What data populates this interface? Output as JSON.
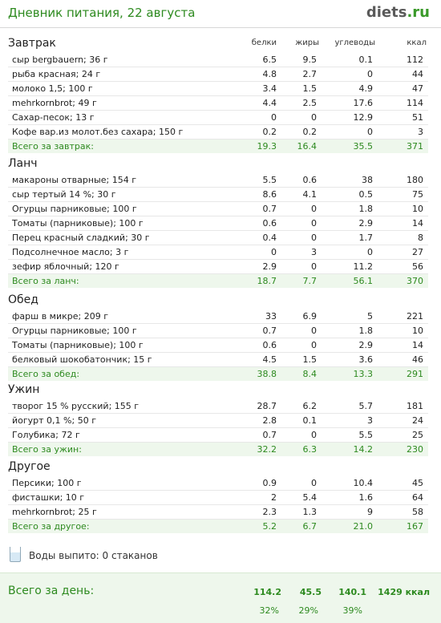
{
  "header": {
    "title": "Дневник питания, 22 августа",
    "logo_main": "diets",
    "logo_ext": ".ru"
  },
  "columns": {
    "protein": "белки",
    "fat": "жиры",
    "carbs": "углеводы",
    "kcal": "ккал"
  },
  "sections": [
    {
      "title": "Завтрак",
      "items": [
        [
          "сыр bergbauern; 36 г",
          "6.5",
          "9.5",
          "0.1",
          "112"
        ],
        [
          "рыба красная; 24 г",
          "4.8",
          "2.7",
          "0",
          "44"
        ],
        [
          "молоко 1,5; 100 г",
          "3.4",
          "1.5",
          "4.9",
          "47"
        ],
        [
          "mehrkornbrot; 49 г",
          "4.4",
          "2.5",
          "17.6",
          "114"
        ],
        [
          "Сахар-песок; 13 г",
          "0",
          "0",
          "12.9",
          "51"
        ],
        [
          "Кофе вар.из молот.без сахара; 150 г",
          "0.2",
          "0.2",
          "0",
          "3"
        ]
      ],
      "total": [
        "Всего за завтрак:",
        "19.3",
        "16.4",
        "35.5",
        "371"
      ]
    },
    {
      "title": "Ланч",
      "items": [
        [
          "макароны отварные; 154 г",
          "5.5",
          "0.6",
          "38",
          "180"
        ],
        [
          "сыр тертый 14 %; 30 г",
          "8.6",
          "4.1",
          "0.5",
          "75"
        ],
        [
          "Огурцы парниковые; 100 г",
          "0.7",
          "0",
          "1.8",
          "10"
        ],
        [
          "Томаты (парниковые); 100 г",
          "0.6",
          "0",
          "2.9",
          "14"
        ],
        [
          "Перец красный сладкий; 30 г",
          "0.4",
          "0",
          "1.7",
          "8"
        ],
        [
          "Подсолнечное масло; 3 г",
          "0",
          "3",
          "0",
          "27"
        ],
        [
          "зефир яблочный; 120 г",
          "2.9",
          "0",
          "11.2",
          "56"
        ]
      ],
      "total": [
        "Всего за ланч:",
        "18.7",
        "7.7",
        "56.1",
        "370"
      ]
    },
    {
      "title": "Обед",
      "items": [
        [
          "фарш в микре; 209 г",
          "33",
          "6.9",
          "5",
          "221"
        ],
        [
          "Огурцы парниковые; 100 г",
          "0.7",
          "0",
          "1.8",
          "10"
        ],
        [
          "Томаты (парниковые); 100 г",
          "0.6",
          "0",
          "2.9",
          "14"
        ],
        [
          "белковый шокобатончик; 15 г",
          "4.5",
          "1.5",
          "3.6",
          "46"
        ]
      ],
      "total": [
        "Всего за обед:",
        "38.8",
        "8.4",
        "13.3",
        "291"
      ]
    },
    {
      "title": "Ужин",
      "items": [
        [
          "творог 15 % русский; 155 г",
          "28.7",
          "6.2",
          "5.7",
          "181"
        ],
        [
          "йогурт 0,1 %; 50 г",
          "2.8",
          "0.1",
          "3",
          "24"
        ],
        [
          "Голубика; 72 г",
          "0.7",
          "0",
          "5.5",
          "25"
        ]
      ],
      "total": [
        "Всего за ужин:",
        "32.2",
        "6.3",
        "14.2",
        "230"
      ]
    },
    {
      "title": "Другое",
      "items": [
        [
          "Персики; 100 г",
          "0.9",
          "0",
          "10.4",
          "45"
        ],
        [
          "фисташки; 10 г",
          "2",
          "5.4",
          "1.6",
          "64"
        ],
        [
          "mehrkornbrot; 25 г",
          "2.3",
          "1.3",
          "9",
          "58"
        ]
      ],
      "total": [
        "Всего за другое:",
        "5.2",
        "6.7",
        "21.0",
        "167"
      ]
    }
  ],
  "water": {
    "text": "Воды выпито: 0 стаканов",
    "icon": "glass-icon"
  },
  "day": {
    "label": "Всего за день:",
    "protein": "114.2",
    "fat": "45.5",
    "carbs": "140.1",
    "kcal": "1429 ккал",
    "protein_pct": "32%",
    "fat_pct": "29%",
    "carbs_pct": "39%"
  },
  "colors": {
    "accent": "#2d8a1f",
    "total_bg": "#eef7ec"
  }
}
